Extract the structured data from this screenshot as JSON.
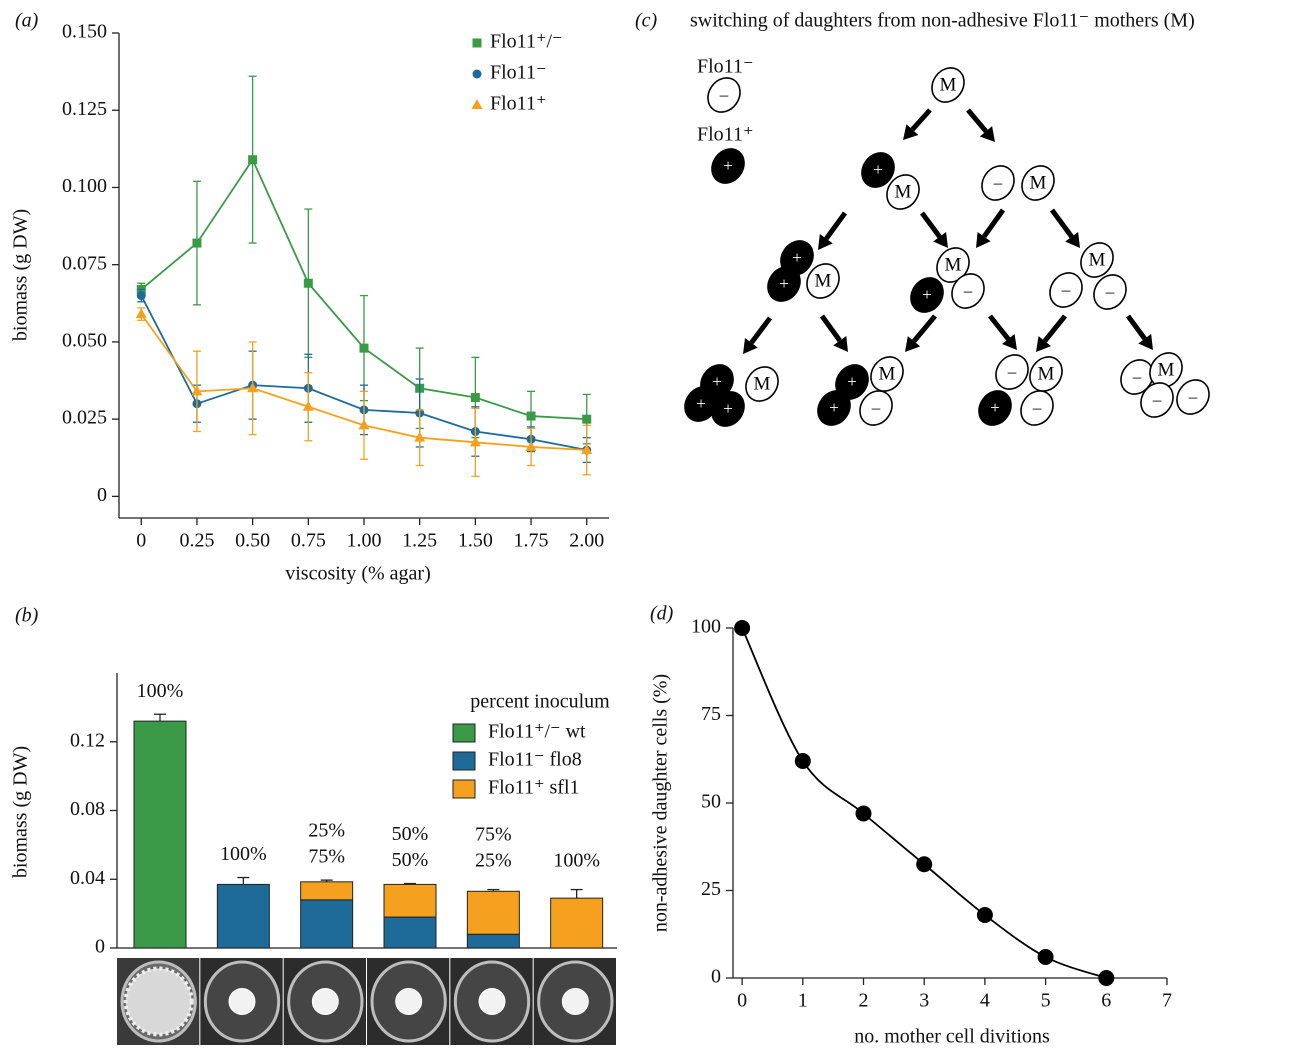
{
  "chart_data": [
    {
      "type": "line",
      "panel": "(a)",
      "xlabel": "viscosity (% agar)",
      "ylabel": "biomass (g DW)",
      "x": [
        0,
        0.25,
        0.5,
        0.75,
        1,
        1.25,
        1.5,
        1.75,
        2
      ],
      "xlim": [
        -0.1,
        2.1
      ],
      "xticks": [
        0,
        0.25,
        {
          "value": 0.5,
          "label": "0.50"
        },
        0.75,
        {
          "value": 1,
          "label": "1.00"
        },
        1.25,
        {
          "value": 1.5,
          "label": "1.50"
        },
        1.75,
        {
          "value": 2,
          "label": "2.00"
        }
      ],
      "ylim": [
        -0.007,
        0.15
      ],
      "yticks": [
        0,
        0.025,
        {
          "value": 0.05,
          "label": "0.050"
        },
        0.075,
        {
          "value": 0.1,
          "label": "0.100"
        },
        0.125,
        {
          "value": 0.15,
          "label": "0.150"
        }
      ],
      "legend": "upper right",
      "series": [
        {
          "name": "Flo11⁺/⁻",
          "color": "#3a9a48",
          "marker": "square",
          "values": [
            0.067,
            0.082,
            0.109,
            0.069,
            0.048,
            0.035,
            0.032,
            0.026,
            0.025
          ],
          "errors": [
            0.002,
            0.02,
            0.027,
            0.024,
            0.017,
            0.013,
            0.013,
            0.008,
            0.008
          ]
        },
        {
          "name": "Flo11⁻",
          "color": "#1e6b9a",
          "marker": "circle",
          "values": [
            0.065,
            0.03,
            0.036,
            0.035,
            0.028,
            0.027,
            0.021,
            0.0185,
            0.015
          ],
          "errors": [
            0.002,
            0.006,
            0.011,
            0.011,
            0.008,
            0.011,
            0.008,
            0.004,
            0.004
          ]
        },
        {
          "name": "Flo11⁺",
          "color": "#f5a01f",
          "marker": "triangle",
          "values": [
            0.059,
            0.034,
            0.035,
            0.029,
            0.023,
            0.019,
            0.0175,
            0.016,
            0.015
          ],
          "errors": [
            0.002,
            0.013,
            0.015,
            0.011,
            0.011,
            0.009,
            0.011,
            0.006,
            0.008
          ]
        }
      ]
    },
    {
      "type": "stacked_bar",
      "panel": "(b)",
      "ylabel": "biomass (g DW)",
      "categories": [
        null,
        null,
        null,
        null,
        null,
        null
      ],
      "ylim": [
        0,
        0.16
      ],
      "yticks": [
        0,
        0.04,
        0.08,
        0.12
      ],
      "legend_title": "percent inoculum",
      "legend": "upper right",
      "series": [
        {
          "name": "Flo11⁺/⁻ wt",
          "color": "#3a9a48",
          "values": [
            0.132,
            null,
            null,
            null,
            null,
            null
          ]
        },
        {
          "name": "Flo11⁻ flo8",
          "color": "#1e6b9a",
          "values": [
            null,
            0.037,
            0.028,
            0.018,
            0.008,
            null
          ]
        },
        {
          "name": "Flo11⁺ sfl1",
          "color": "#f5a01f",
          "values": [
            null,
            null,
            0.0105,
            0.019,
            0.025,
            0.029
          ]
        }
      ],
      "errors": [
        0.004,
        0.004,
        0.001,
        0.0005,
        0.001,
        0.005
      ],
      "bar_labels": [
        [
          "100%"
        ],
        [
          "100%"
        ],
        [
          "25%",
          "75%"
        ],
        [
          "50%",
          "50%"
        ],
        [
          "75%",
          "25%"
        ],
        [
          "100%"
        ]
      ]
    },
    {
      "type": "scatter",
      "panel": "(d)",
      "xlabel": "no. mother cell divitions",
      "ylabel": "non-adhesive daughter cells (%)",
      "x": [
        0,
        1,
        2,
        3,
        4,
        5,
        6
      ],
      "values": [
        100,
        62,
        47,
        32.5,
        18,
        6,
        0
      ],
      "color": "#000000",
      "fit_curve": true,
      "xlim": [
        -0.15,
        7
      ],
      "xticks": [
        0,
        1,
        2,
        3,
        4,
        5,
        6,
        7
      ],
      "ylim": [
        0,
        100
      ],
      "yticks": [
        0,
        25,
        50,
        75,
        100
      ]
    }
  ],
  "diagram": {
    "panel": "(c)",
    "title": "switching of daughters from non-adhesive Flo11⁻ mothers (M)",
    "legend": [
      {
        "label": "Flo11⁻",
        "cell": "–"
      },
      {
        "label": "Flo11⁺",
        "cell": "+"
      }
    ],
    "cells": [
      "M",
      "+",
      "M",
      "–",
      "M",
      "+",
      "+",
      "M",
      "M",
      "+",
      "–",
      "M",
      "–",
      "–",
      "+",
      "M",
      "+",
      "+",
      "+",
      "M",
      "+",
      "–",
      "–",
      "M",
      "+",
      "–",
      "–",
      "M",
      "–",
      "–"
    ]
  }
}
